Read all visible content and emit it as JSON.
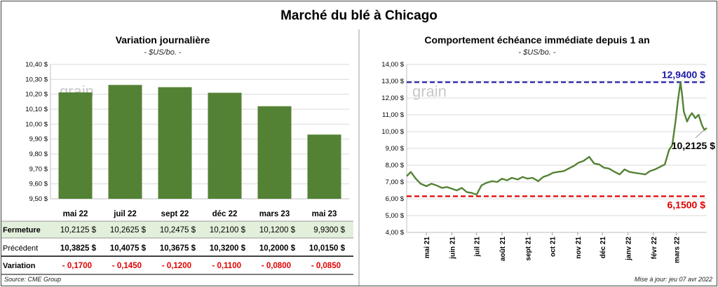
{
  "title": "Marché du blé à Chicago",
  "watermark": "grain",
  "footer": {
    "source": "Source: CME Group",
    "updated": "Mise à jour: jeu 07 avr 2022"
  },
  "colors": {
    "bar": "#548235",
    "line": "#548235",
    "high": "#1a1aa8",
    "low": "#e00000",
    "closeRow": "#e2efda"
  },
  "chart_data": [
    {
      "type": "bar",
      "title": "Variation  journalière",
      "subtitle": "- $US/bo. -",
      "categories": [
        "mai 22",
        "juil 22",
        "sept 22",
        "déc 22",
        "mars 23",
        "mai 23"
      ],
      "values": [
        10.2125,
        10.2625,
        10.2475,
        10.21,
        10.12,
        9.93
      ],
      "ylim": [
        9.5,
        10.4
      ],
      "yticks": [
        "9,50 $",
        "9,60 $",
        "9,70 $",
        "9,80 $",
        "9,90 $",
        "10,00 $",
        "10,10 $",
        "10,20 $",
        "10,30 $",
        "10,40 $"
      ],
      "grid": true,
      "table": {
        "rows": [
          {
            "label": "Fermeture",
            "values": [
              "10,2125  $",
              "10,2625  $",
              "10,2475  $",
              "10,2100  $",
              "10,1200  $",
              "9,9300  $"
            ]
          },
          {
            "label": "Précédent",
            "values": [
              "10,3825  $",
              "10,4075  $",
              "10,3675  $",
              "10,3200  $",
              "10,2000  $",
              "10,0150  $"
            ]
          },
          {
            "label": "Variation",
            "values": [
              "- 0,1700",
              "- 0,1450",
              "- 0,1200",
              "- 0,1100",
              "- 0,0800",
              "- 0,0850"
            ]
          }
        ]
      }
    },
    {
      "type": "line",
      "title": "Comportement  échéance immédiate depuis 1 an",
      "subtitle": "- $US/bo. -",
      "ylim": [
        4.0,
        14.0
      ],
      "yticks": [
        "4,00 $",
        "5,00 $",
        "6,00 $",
        "7,00 $",
        "8,00 $",
        "9,00 $",
        "10,00 $",
        "11,00 $",
        "12,00 $",
        "13,00 $",
        "14,00 $"
      ],
      "xticks": [
        "mai 21",
        "juin 21",
        "juil 21",
        "août 21",
        "sept 21",
        "oct 21",
        "nov 21",
        "déc 21",
        "janv 22",
        "févr 22",
        "mars 22"
      ],
      "x": [
        "2021-04-07",
        "2021-04-12",
        "2021-04-18",
        "2021-04-24",
        "2021-05-01",
        "2021-05-07",
        "2021-05-13",
        "2021-05-20",
        "2021-05-26",
        "2021-06-01",
        "2021-06-07",
        "2021-06-13",
        "2021-06-19",
        "2021-06-25",
        "2021-07-01",
        "2021-07-07",
        "2021-07-13",
        "2021-07-20",
        "2021-07-26",
        "2021-08-01",
        "2021-08-07",
        "2021-08-13",
        "2021-08-20",
        "2021-08-26",
        "2021-09-01",
        "2021-09-07",
        "2021-09-14",
        "2021-09-20",
        "2021-09-26",
        "2021-10-02",
        "2021-10-08",
        "2021-10-15",
        "2021-10-21",
        "2021-10-27",
        "2021-11-02",
        "2021-11-08",
        "2021-11-15",
        "2021-11-21",
        "2021-11-27",
        "2021-12-03",
        "2021-12-09",
        "2021-12-16",
        "2021-12-22",
        "2021-12-28",
        "2022-01-03",
        "2022-01-09",
        "2022-01-16",
        "2022-01-22",
        "2022-01-28",
        "2022-02-03",
        "2022-02-09",
        "2022-02-15",
        "2022-02-20",
        "2022-02-24",
        "2022-02-28",
        "2022-03-03",
        "2022-03-06",
        "2022-03-08",
        "2022-03-10",
        "2022-03-14",
        "2022-03-17",
        "2022-03-20",
        "2022-03-24",
        "2022-03-28",
        "2022-04-01",
        "2022-04-04",
        "2022-04-07"
      ],
      "y": [
        7.35,
        7.6,
        7.2,
        6.9,
        6.75,
        6.9,
        6.8,
        6.65,
        6.7,
        6.6,
        6.5,
        6.65,
        6.4,
        6.35,
        6.25,
        6.8,
        6.95,
        7.05,
        7.0,
        7.2,
        7.1,
        7.25,
        7.15,
        7.3,
        7.2,
        7.25,
        7.05,
        7.3,
        7.4,
        7.55,
        7.6,
        7.65,
        7.8,
        7.95,
        8.15,
        8.25,
        8.5,
        8.1,
        8.05,
        7.85,
        7.8,
        7.6,
        7.45,
        7.75,
        7.6,
        7.55,
        7.5,
        7.45,
        7.65,
        7.75,
        7.9,
        8.05,
        8.9,
        9.2,
        10.6,
        11.9,
        12.94,
        12.2,
        11.2,
        10.6,
        10.9,
        11.1,
        10.8,
        11.0,
        10.4,
        10.1,
        10.2125
      ],
      "reference_lines": [
        {
          "label": "12,9400  $",
          "value": 12.94
        },
        {
          "label": "6,1500  $",
          "value": 6.15
        }
      ],
      "last_label": "10,2125 $",
      "grid": true
    }
  ]
}
